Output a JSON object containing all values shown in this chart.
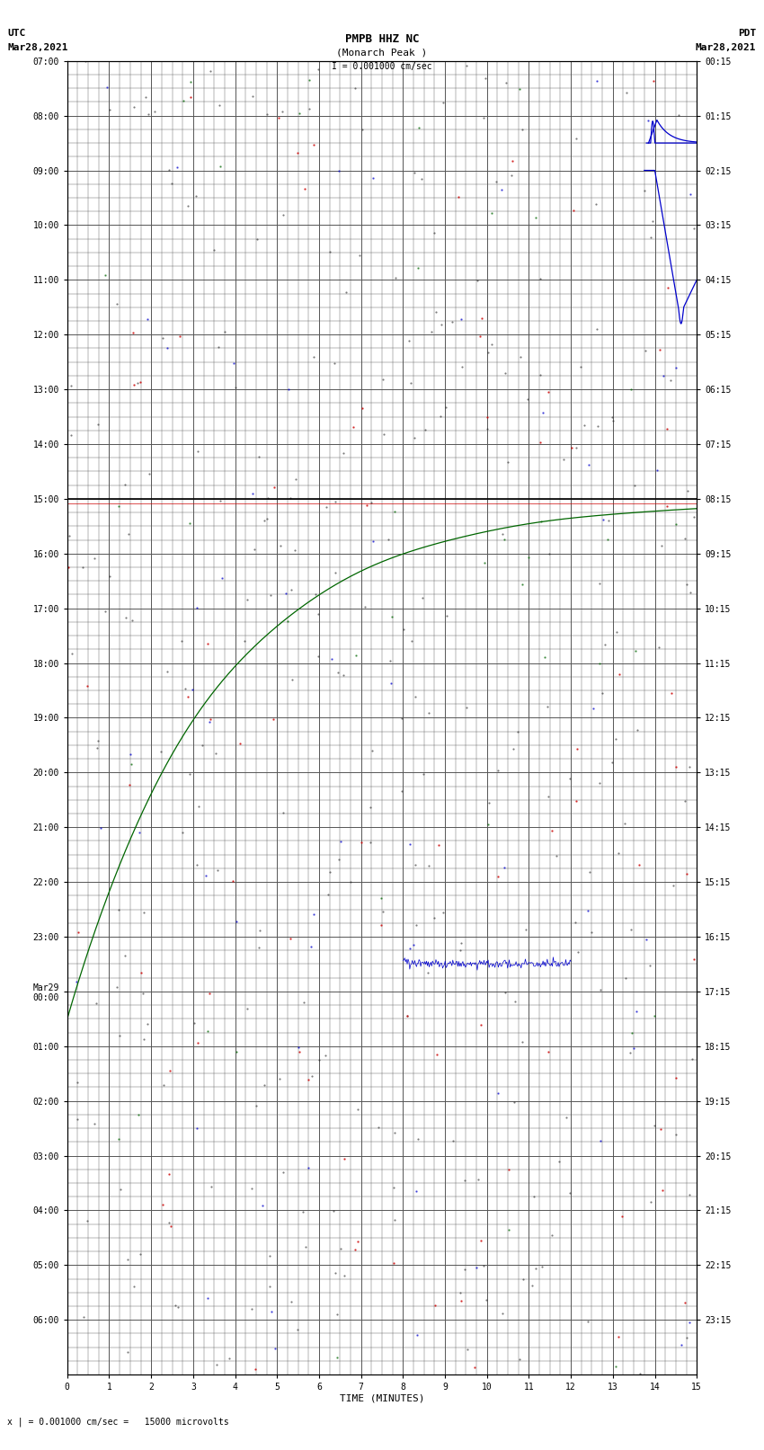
{
  "title_line1": "PMPB HHZ NC",
  "title_line2": "(Monarch Peak )",
  "scale_text": "I = 0.001000 cm/sec",
  "utc_label": "UTC",
  "utc_date": "Mar28,2021",
  "pdt_label": "PDT",
  "pdt_date": "Mar28,2021",
  "bottom_label": "x | = 0.001000 cm/sec =   15000 microvolts",
  "xlabel": "TIME (MINUTES)",
  "ytick_left": [
    "07:00",
    "08:00",
    "09:00",
    "10:00",
    "11:00",
    "12:00",
    "13:00",
    "14:00",
    "15:00",
    "16:00",
    "17:00",
    "18:00",
    "19:00",
    "20:00",
    "21:00",
    "22:00",
    "23:00",
    "Mar29\n00:00",
    "01:00",
    "02:00",
    "03:00",
    "04:00",
    "05:00",
    "06:00"
  ],
  "ytick_right": [
    "00:15",
    "01:15",
    "02:15",
    "03:15",
    "04:15",
    "05:15",
    "06:15",
    "07:15",
    "08:15",
    "09:15",
    "10:15",
    "11:15",
    "12:15",
    "13:15",
    "14:15",
    "15:15",
    "16:15",
    "17:15",
    "18:15",
    "19:15",
    "20:15",
    "21:15",
    "22:15",
    "23:15"
  ],
  "num_rows": 24,
  "num_cols": 15,
  "bg_color": "#ffffff",
  "grid_color": "#555555",
  "title_fontsize": 9,
  "label_fontsize": 8,
  "tick_fontsize": 7
}
